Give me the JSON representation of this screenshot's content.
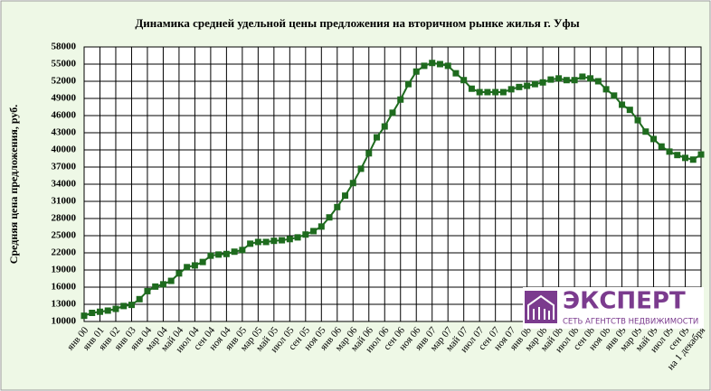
{
  "chart_data": {
    "type": "line",
    "title": "Динамика средней удельной цены предложения на вторичном рынке жилья г. Уфы",
    "y_label": "Средняя цена предложения, руб.",
    "categories": [
      "янв 00",
      null,
      "янв 01",
      null,
      "янв 02",
      null,
      "янв 03",
      null,
      "янв 04",
      null,
      "мар 04",
      null,
      "май 04",
      null,
      "июл 04",
      null,
      "сен 04",
      null,
      "ноя 04",
      null,
      "янв 05",
      null,
      "мар 05",
      null,
      "май 05",
      null,
      "июл 05",
      null,
      "сен 05",
      null,
      "ноя 05",
      null,
      "янв 06",
      null,
      "мар 06",
      null,
      "май 06",
      null,
      "июл 06",
      null,
      "сен 06",
      null,
      "ноя 06",
      null,
      "янв 07",
      null,
      "мар 07",
      null,
      "май 07",
      null,
      "июл 07",
      null,
      "сен 07",
      null,
      "ноя 07",
      null,
      "янв 08",
      null,
      "мар 08",
      null,
      "май 08",
      null,
      "июл 08",
      null,
      "сен 08",
      null,
      "ноя 08",
      null,
      "янв 09",
      null,
      "мар 09",
      null,
      "май 09",
      null,
      "июл 09",
      null,
      "сен 09",
      null,
      "на 1 декабря"
    ],
    "values": [
      11000,
      11500,
      11700,
      11900,
      12200,
      12700,
      12900,
      13900,
      15300,
      16100,
      16500,
      17100,
      18400,
      19500,
      19800,
      20400,
      21500,
      21700,
      21800,
      22200,
      22500,
      23600,
      23900,
      23900,
      24100,
      24200,
      24400,
      24700,
      25200,
      25800,
      26600,
      28200,
      30000,
      32000,
      34200,
      36700,
      39400,
      42200,
      44100,
      46500,
      48800,
      51500,
      53700,
      54700,
      55200,
      55000,
      54700,
      53400,
      52200,
      50700,
      50100,
      50100,
      50100,
      50100,
      50600,
      51000,
      51200,
      51500,
      51800,
      52300,
      52500,
      52200,
      52200,
      52800,
      52500,
      52000,
      50600,
      49500,
      47900,
      47000,
      45200,
      43200,
      41900,
      40600,
      39700,
      39100,
      38600,
      38300,
      39200
    ],
    "color": "#1e6b1e",
    "ylim": [
      10000,
      58000
    ],
    "yticks": [
      10000,
      13000,
      16000,
      19000,
      22000,
      25000,
      28000,
      31000,
      34000,
      37000,
      40000,
      43000,
      46000,
      49000,
      52000,
      55000,
      58000
    ],
    "grid": true,
    "logo": {
      "title": "ЭКСПЕРТ",
      "subtitle": "СЕТЬ АГЕНТСТВ НЕДВИЖИМОСТИ"
    }
  }
}
